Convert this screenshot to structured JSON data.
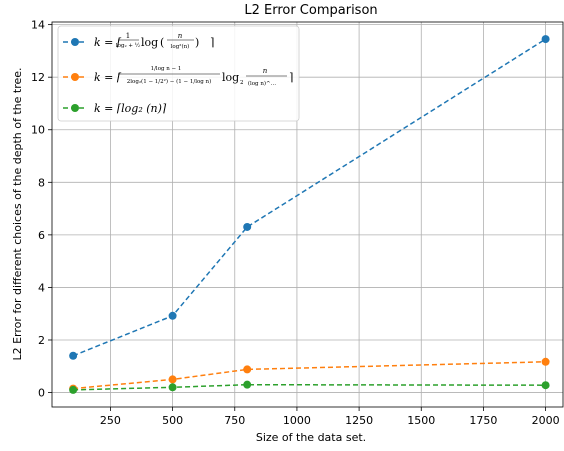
{
  "chart_data": {
    "type": "line",
    "title": "L2 Error Comparison",
    "xlabel": "Size of the data set.",
    "ylabel": "L2 Error for different choices of the depth of the tree.",
    "xlim": [
      15,
      2070
    ],
    "ylim": [
      -0.55,
      14.1
    ],
    "xticks": [
      250,
      500,
      750,
      1000,
      1250,
      1500,
      1750,
      2000
    ],
    "yticks": [
      0,
      2,
      4,
      6,
      8,
      10,
      12,
      14
    ],
    "grid": true,
    "legend_position": "top-left",
    "series": [
      {
        "name": "k = ⌈ 1/(log₂+½) · log( n / log²(n) ) ⌉",
        "color": "#1f77b4",
        "x": [
          100,
          500,
          800,
          2000
        ],
        "y": [
          1.4,
          2.92,
          6.3,
          13.45
        ]
      },
      {
        "name": "k = ⌈ (1/log n − 1) / (2log₂(1 − 1/2²) − (1 − 1/log n)) · log₂( n / (log n)^(…) ) ⌉",
        "color": "#ff7f0e",
        "x": [
          100,
          500,
          800,
          2000
        ],
        "y": [
          0.15,
          0.5,
          0.88,
          1.17
        ]
      },
      {
        "name": "k = ⌈log₂(n)⌉",
        "color": "#2ca02c",
        "x": [
          100,
          500,
          800,
          2000
        ],
        "y": [
          0.1,
          0.2,
          0.3,
          0.28
        ]
      }
    ]
  }
}
